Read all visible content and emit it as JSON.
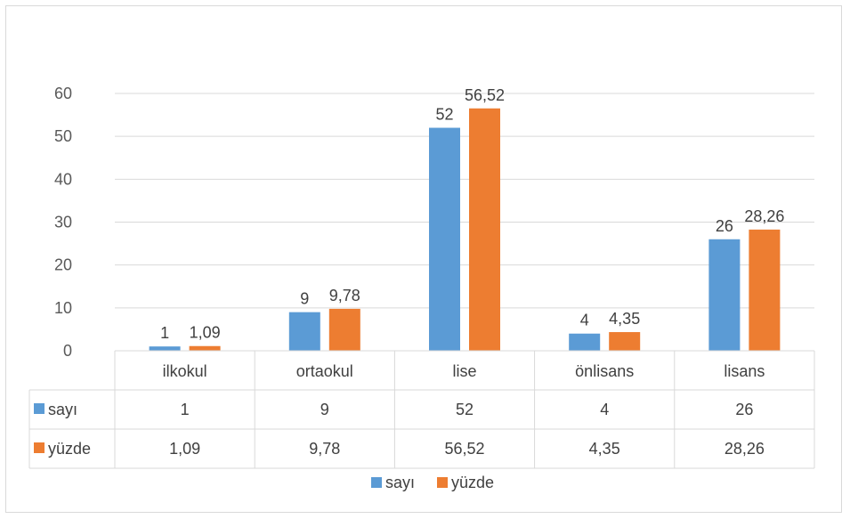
{
  "chart_data": {
    "type": "bar",
    "categories": [
      "ilkokul",
      "ortaokul",
      "lise",
      "önlisans",
      "lisans"
    ],
    "series": [
      {
        "name": "sayı",
        "values": [
          1,
          9,
          52,
          4,
          26
        ],
        "labels": [
          "1",
          "9",
          "52",
          "4",
          "26"
        ],
        "color": "#5b9bd5"
      },
      {
        "name": "yüzde",
        "values": [
          1.09,
          9.78,
          56.52,
          4.35,
          28.26
        ],
        "labels": [
          "1,09",
          "9,78",
          "56,52",
          "4,35",
          "28,26"
        ],
        "color": "#ed7d31"
      }
    ],
    "ylim": [
      0,
      60
    ],
    "yticks": [
      "0",
      "10",
      "20",
      "30",
      "40",
      "50",
      "60"
    ],
    "grid": true,
    "data_table": true,
    "legend": "bottom"
  }
}
